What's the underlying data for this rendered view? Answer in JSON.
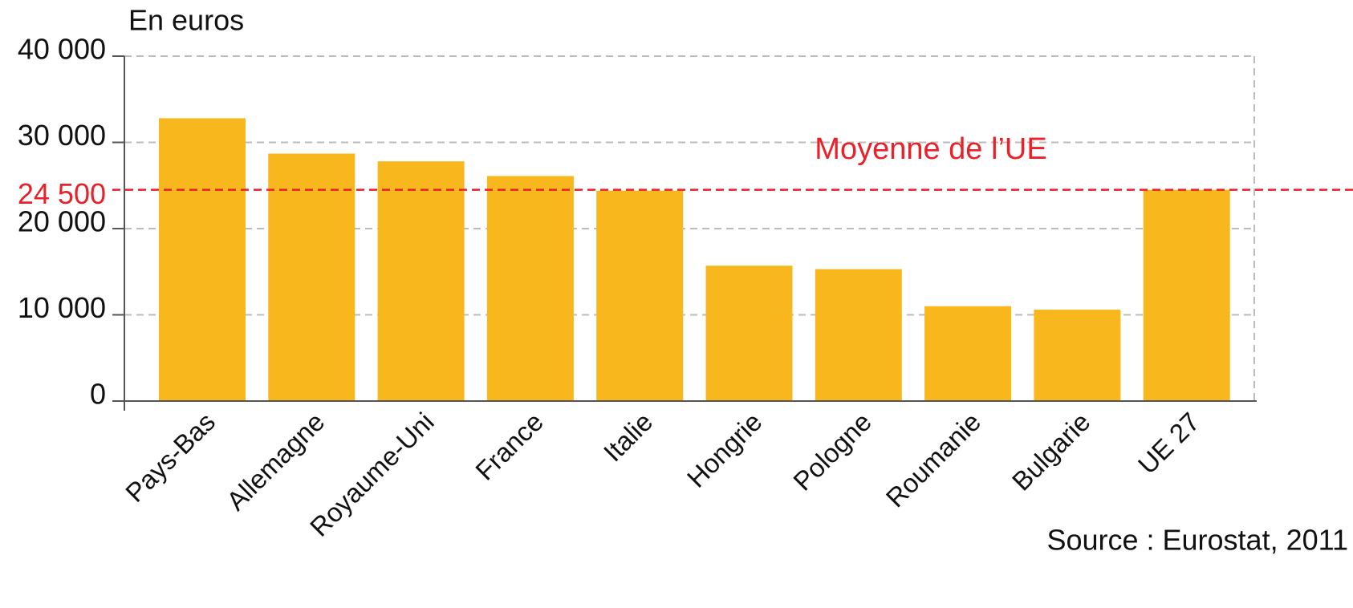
{
  "chart_data": {
    "type": "bar",
    "title": "En euros",
    "source": "Source : Eurostat, 2011",
    "categories": [
      "Pays-Bas",
      "Allemagne",
      "Royaume-Uni",
      "France",
      "Italie",
      "Hongrie",
      "Pologne",
      "Roumanie",
      "Bulgarie",
      "UE 27"
    ],
    "values": [
      32800,
      28700,
      27800,
      26100,
      24400,
      15700,
      15300,
      11000,
      10600,
      24500
    ],
    "color": "#f8b71c",
    "ylim": [
      0,
      40000
    ],
    "yticks": [
      0,
      {
        "value": 10000,
        "label": "10 000"
      },
      {
        "value": 20000,
        "label": "20 000"
      },
      {
        "value": 30000,
        "label": "30 000"
      },
      {
        "value": 40000,
        "label": "40 000"
      }
    ],
    "grid": true,
    "reference_line": {
      "value": 24500,
      "label": "24 500",
      "annotation": "Moyenne de l’UE",
      "color": "#e8212b"
    }
  }
}
